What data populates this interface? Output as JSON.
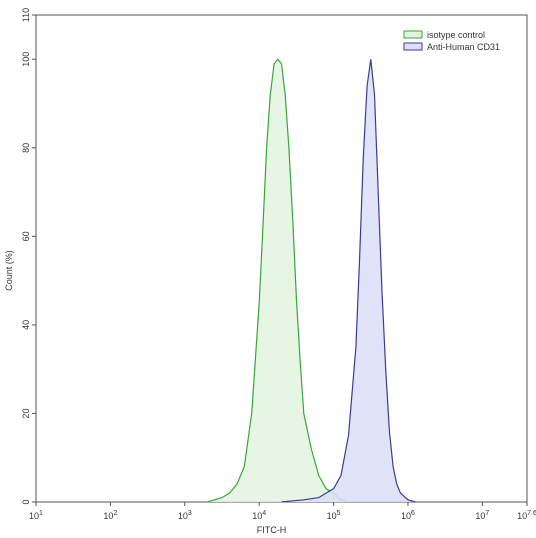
{
  "chart_data": {
    "type": "area",
    "xscale": "log10",
    "xlabel": "FITC-H",
    "ylabel": "Count (%)",
    "xlim": [
      1,
      7.6
    ],
    "ylim": [
      0,
      110
    ],
    "x_ticks": [
      {
        "base": "10",
        "exp": "1"
      },
      {
        "base": "10",
        "exp": "2"
      },
      {
        "base": "10",
        "exp": "3"
      },
      {
        "base": "10",
        "exp": "4"
      },
      {
        "base": "10",
        "exp": "5"
      },
      {
        "base": "10",
        "exp": "6"
      },
      {
        "base": "10",
        "exp": "7"
      },
      {
        "base": "10",
        "exp": "7.6"
      }
    ],
    "y_ticks": [
      "0",
      "20",
      "40",
      "60",
      "80",
      "100",
      "110"
    ],
    "y_tick_values": [
      0,
      20,
      40,
      60,
      80,
      100,
      110
    ],
    "legend_position": "top-right",
    "grid": false,
    "series": [
      {
        "name": "isotype control",
        "stroke": "#3aa63a",
        "fill": "#e3f3df",
        "x_log10": [
          3.3,
          3.5,
          3.6,
          3.7,
          3.8,
          3.9,
          4.0,
          4.05,
          4.1,
          4.15,
          4.2,
          4.25,
          4.3,
          4.35,
          4.4,
          4.45,
          4.5,
          4.55,
          4.6,
          4.7,
          4.8,
          4.9,
          5.0,
          5.1,
          5.2
        ],
        "y": [
          0,
          1,
          2,
          4,
          8,
          20,
          45,
          62,
          80,
          92,
          99,
          100,
          99,
          92,
          80,
          64,
          46,
          32,
          20,
          12,
          6,
          3,
          2,
          0.5,
          0
        ]
      },
      {
        "name": "Anti-Human CD31",
        "stroke": "#3a3a9a",
        "fill": "#dcdff7",
        "x_log10": [
          4.3,
          4.6,
          4.8,
          4.9,
          5.0,
          5.1,
          5.2,
          5.3,
          5.35,
          5.4,
          5.45,
          5.5,
          5.55,
          5.6,
          5.65,
          5.7,
          5.75,
          5.8,
          5.85,
          5.9,
          6.0,
          6.1
        ],
        "y": [
          0,
          0.5,
          1,
          2,
          3,
          6,
          15,
          35,
          55,
          78,
          94,
          100,
          92,
          70,
          48,
          30,
          16,
          8,
          4,
          2,
          0.5,
          0
        ]
      }
    ]
  }
}
